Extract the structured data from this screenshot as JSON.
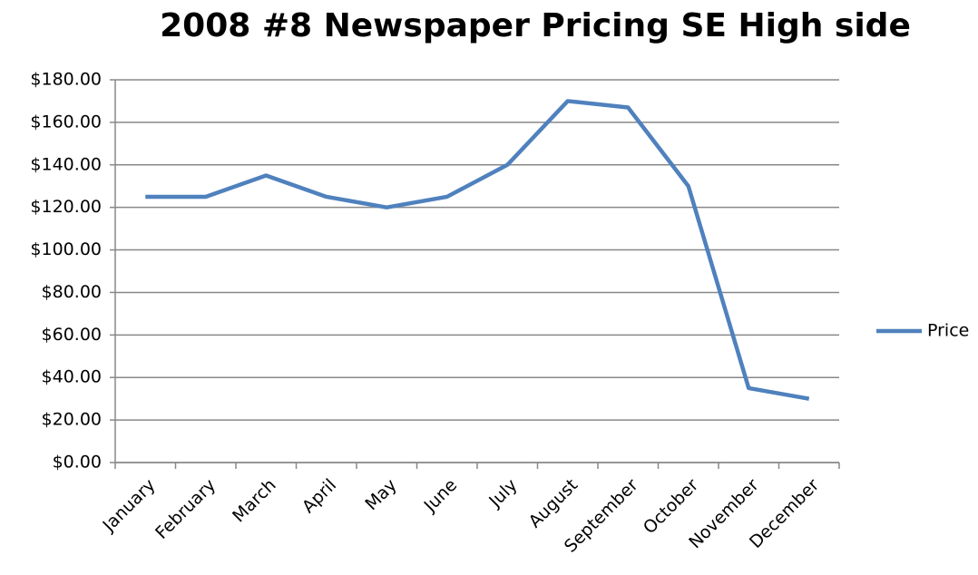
{
  "chart_data": {
    "type": "line",
    "title": "2008 #8 Newspaper Pricing SE High side",
    "categories": [
      "January",
      "February",
      "March",
      "April",
      "May",
      "June",
      "July",
      "August",
      "September",
      "October",
      "November",
      "December"
    ],
    "series": [
      {
        "name": "Price",
        "color": "#4f81bd",
        "values": [
          125,
          125,
          135,
          125,
          120,
          125,
          140,
          170,
          167,
          130,
          35,
          30
        ]
      }
    ],
    "ylim": [
      0,
      180
    ],
    "yticks": [
      {
        "value": 0,
        "label": "$0.00"
      },
      {
        "value": 20,
        "label": "$20.00"
      },
      {
        "value": 40,
        "label": "$40.00"
      },
      {
        "value": 60,
        "label": "$60.00"
      },
      {
        "value": 80,
        "label": "$80.00"
      },
      {
        "value": 100,
        "label": "$100.00"
      },
      {
        "value": 120,
        "label": "$120.00"
      },
      {
        "value": 140,
        "label": "$140.00"
      },
      {
        "value": 160,
        "label": "$160.00"
      },
      {
        "value": 180,
        "label": "$180.00"
      }
    ],
    "grid": true,
    "legend": "right"
  }
}
